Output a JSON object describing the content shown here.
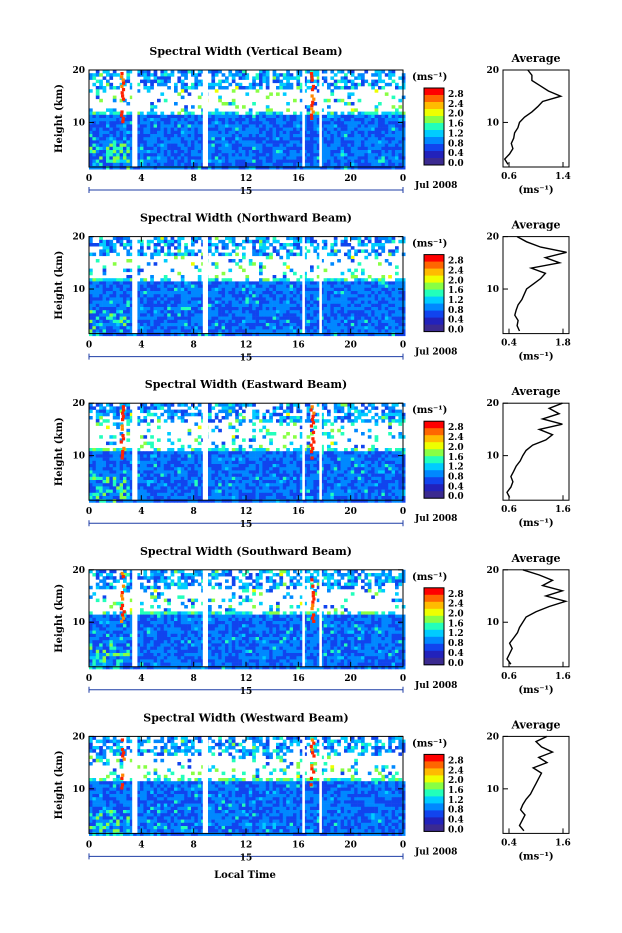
{
  "figure": {
    "xlabel": "Local Time",
    "date_label": "Jul 2008",
    "day_label": "15"
  },
  "colorbar": {
    "unit": "(ms⁻¹)",
    "ticks": [
      "2.8",
      "2.4",
      "2.0",
      "1.6",
      "1.2",
      "0.8",
      "0.4",
      "0.0"
    ],
    "colors": [
      "#ff0000",
      "#ff6600",
      "#ffbb00",
      "#eeff00",
      "#88ff44",
      "#22ffbb",
      "#00ccff",
      "#0088ff",
      "#1144ee",
      "#2222bb",
      "#3b2a90"
    ]
  },
  "average_title": "Average",
  "average_unit": "(ms⁻¹)",
  "chart_data": [
    {
      "type": "heatmap",
      "title": "Spectral Width (Vertical Beam)",
      "ylabel": "Height (km)",
      "x_ticks": [
        "0",
        "4",
        "8",
        "12",
        "16",
        "20",
        "0"
      ],
      "y_ticks": [
        "20",
        "10"
      ],
      "xlim": [
        0,
        24
      ],
      "ylim": [
        1.5,
        20
      ],
      "cloud_top_km": 11.5,
      "gaps_hours": [
        [
          3.3,
          3.7
        ],
        [
          8.7,
          9.1
        ],
        [
          16.3,
          16.5
        ],
        [
          17.6,
          17.8
        ]
      ],
      "hot_columns_hours": [
        2.5,
        17.0
      ],
      "average": {
        "x_ticks": [
          "0.6",
          "1.4"
        ],
        "xlim": [
          0.6,
          1.4
        ],
        "heights": [
          2,
          3,
          4,
          5,
          6,
          7,
          8,
          9,
          10,
          11,
          12,
          13,
          14,
          15,
          16,
          17,
          18,
          19,
          20
        ],
        "values": [
          0.66,
          0.62,
          0.68,
          0.72,
          0.7,
          0.73,
          0.74,
          0.78,
          0.8,
          0.86,
          0.95,
          1.02,
          1.08,
          1.3,
          1.15,
          1.05,
          0.95,
          0.95,
          0.9
        ]
      }
    },
    {
      "type": "heatmap",
      "title": "Spectral Width (Northward Beam)",
      "ylabel": "Height (km)",
      "x_ticks": [
        "0",
        "4",
        "8",
        "12",
        "16",
        "20",
        "0"
      ],
      "y_ticks": [
        "20",
        "10"
      ],
      "xlim": [
        0,
        24
      ],
      "ylim": [
        1.5,
        20
      ],
      "cloud_top_km": 11.8,
      "gaps_hours": [
        [
          3.3,
          3.7
        ],
        [
          8.7,
          9.1
        ],
        [
          16.3,
          16.5
        ],
        [
          17.6,
          17.8
        ]
      ],
      "hot_columns_hours": [],
      "average": {
        "x_ticks": [
          "0.4",
          "1.8"
        ],
        "xlim": [
          0.4,
          1.8
        ],
        "heights": [
          2,
          3,
          4,
          5,
          6,
          7,
          8,
          9,
          10,
          11,
          12,
          13,
          14,
          15,
          16,
          17,
          18,
          19,
          20
        ],
        "values": [
          0.75,
          0.7,
          0.72,
          0.65,
          0.68,
          0.72,
          0.8,
          0.85,
          0.9,
          1.05,
          1.2,
          1.3,
          1.0,
          1.6,
          1.3,
          1.75,
          1.2,
          0.9,
          0.7
        ]
      }
    },
    {
      "type": "heatmap",
      "title": "Spectral Width (Eastward Beam)",
      "ylabel": "Height (km)",
      "x_ticks": [
        "0",
        "4",
        "8",
        "12",
        "16",
        "20",
        "0"
      ],
      "y_ticks": [
        "20",
        "10"
      ],
      "xlim": [
        0,
        24
      ],
      "ylim": [
        1.5,
        20
      ],
      "cloud_top_km": 11.0,
      "gaps_hours": [
        [
          3.3,
          3.7
        ],
        [
          8.7,
          9.1
        ],
        [
          16.3,
          16.5
        ],
        [
          17.6,
          17.8
        ]
      ],
      "hot_columns_hours": [
        2.5,
        17.0
      ],
      "average": {
        "x_ticks": [
          "0.6",
          "1.6"
        ],
        "xlim": [
          0.6,
          1.6
        ],
        "heights": [
          2,
          3,
          4,
          5,
          6,
          7,
          8,
          9,
          10,
          11,
          12,
          13,
          14,
          15,
          16,
          17,
          18,
          19,
          20
        ],
        "values": [
          0.7,
          0.66,
          0.72,
          0.75,
          0.72,
          0.76,
          0.8,
          0.86,
          0.9,
          0.95,
          1.05,
          1.25,
          1.35,
          1.15,
          1.5,
          1.2,
          1.45,
          1.3,
          1.5
        ]
      }
    },
    {
      "type": "heatmap",
      "title": "Spectral Width (Southward Beam)",
      "ylabel": "Height (km)",
      "x_ticks": [
        "0",
        "4",
        "8",
        "12",
        "16",
        "20",
        "0"
      ],
      "y_ticks": [
        "20",
        "10"
      ],
      "xlim": [
        0,
        24
      ],
      "ylim": [
        1.5,
        20
      ],
      "cloud_top_km": 11.5,
      "gaps_hours": [
        [
          3.3,
          3.7
        ],
        [
          8.7,
          9.1
        ],
        [
          16.3,
          16.5
        ],
        [
          17.6,
          17.8
        ]
      ],
      "hot_columns_hours": [
        2.5,
        17.0
      ],
      "average": {
        "x_ticks": [
          "0.6",
          "1.6"
        ],
        "xlim": [
          0.6,
          1.6
        ],
        "heights": [
          2,
          3,
          4,
          5,
          6,
          7,
          8,
          9,
          10,
          11,
          12,
          13,
          14,
          15,
          16,
          17,
          18,
          19,
          20
        ],
        "values": [
          0.72,
          0.66,
          0.7,
          0.74,
          0.7,
          0.76,
          0.82,
          0.85,
          0.9,
          0.95,
          1.1,
          1.3,
          1.55,
          1.25,
          1.5,
          1.2,
          1.35,
          1.15,
          0.9
        ]
      }
    },
    {
      "type": "heatmap",
      "title": "Spectral Width (Westward Beam)",
      "ylabel": "Height (km)",
      "x_ticks": [
        "0",
        "4",
        "8",
        "12",
        "16",
        "20",
        "0"
      ],
      "y_ticks": [
        "20",
        "10"
      ],
      "xlim": [
        0,
        24
      ],
      "ylim": [
        1.5,
        20
      ],
      "cloud_top_km": 11.5,
      "gaps_hours": [
        [
          3.3,
          3.7
        ],
        [
          8.7,
          9.1
        ],
        [
          16.3,
          16.5
        ],
        [
          17.6,
          17.8
        ]
      ],
      "hot_columns_hours": [
        2.5,
        17.0
      ],
      "average": {
        "x_ticks": [
          "0.4",
          "1.6"
        ],
        "xlim": [
          0.4,
          1.6
        ],
        "heights": [
          2,
          3,
          4,
          5,
          6,
          7,
          8,
          9,
          10,
          11,
          12,
          13,
          14,
          15,
          16,
          17,
          18,
          19,
          20
        ],
        "values": [
          0.78,
          0.7,
          0.75,
          0.8,
          0.72,
          0.76,
          0.82,
          0.9,
          0.95,
          1.0,
          1.05,
          1.1,
          0.95,
          1.2,
          1.05,
          1.3,
          1.1,
          1.0,
          1.2
        ]
      }
    }
  ]
}
